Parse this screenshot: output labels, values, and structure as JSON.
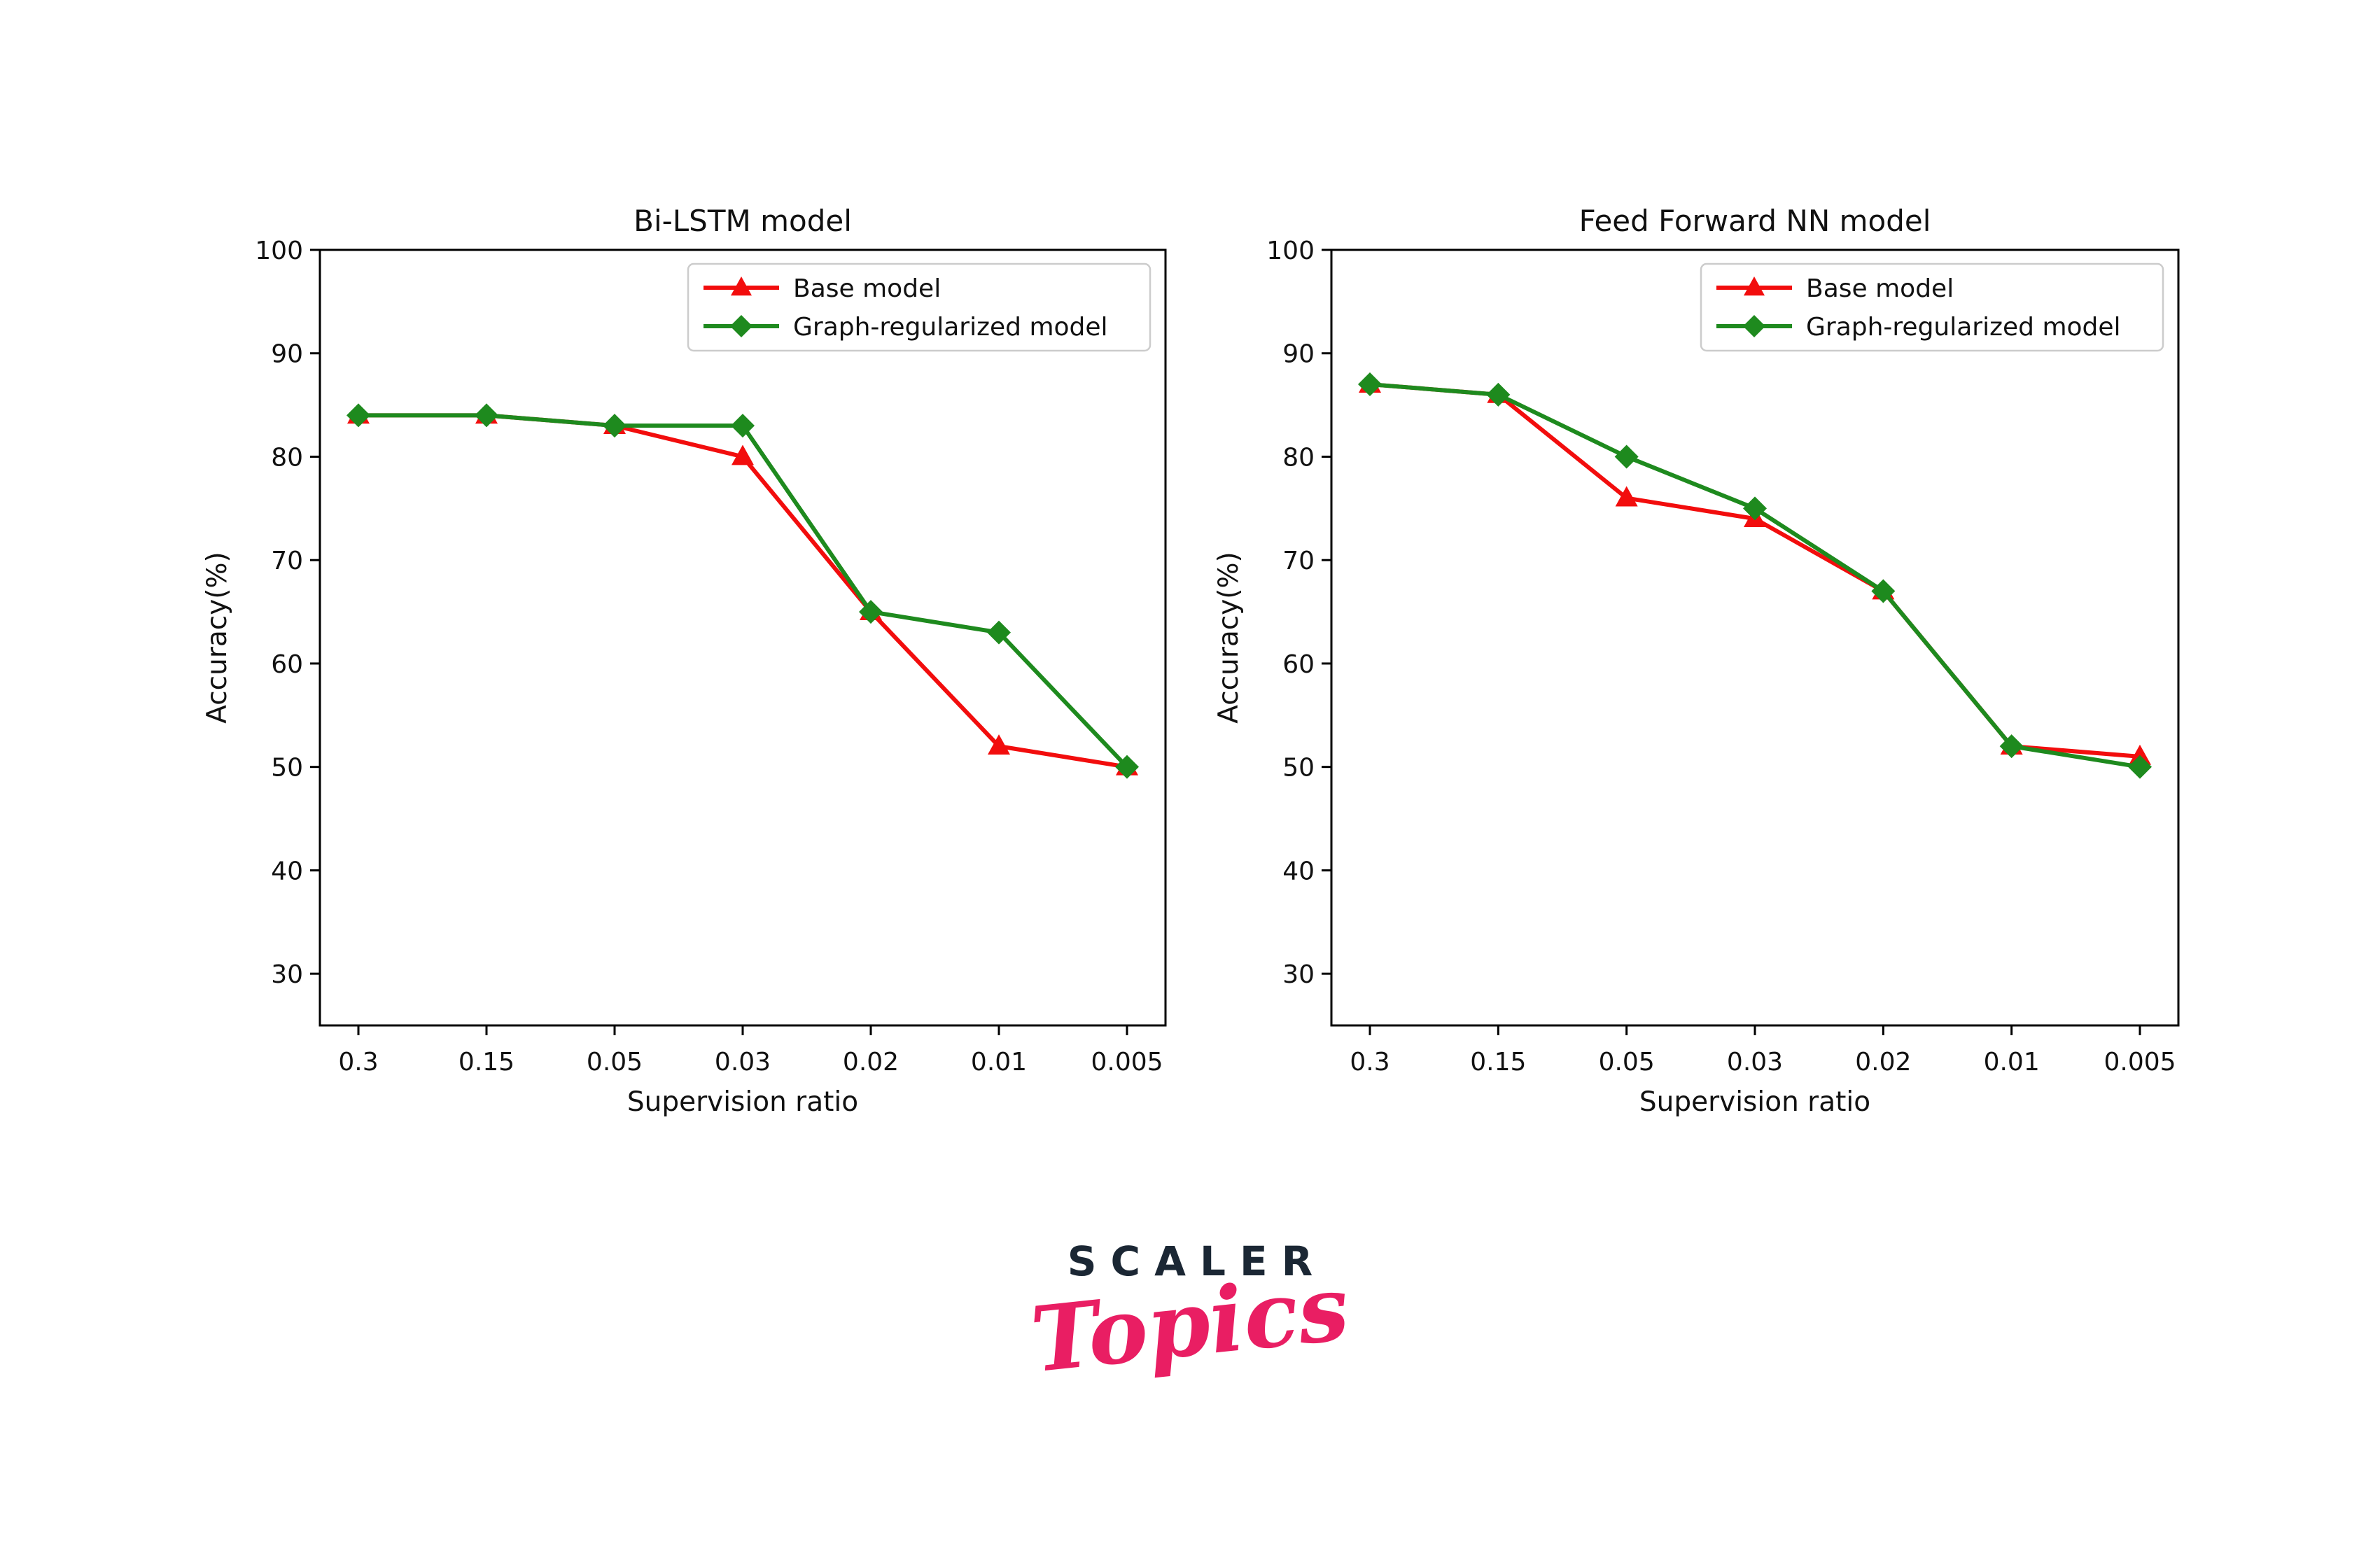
{
  "figure": {
    "background": "#ffffff",
    "text_color": "#111111",
    "axis_color": "#000000"
  },
  "logo": {
    "brand": "SCALER",
    "word": "Topics",
    "brand_color": "#1b2734",
    "word_color": "#e91e63"
  },
  "chart_data": [
    {
      "type": "line",
      "title": "Bi-LSTM model",
      "xlabel": "Supervision ratio",
      "ylabel": "Accuracy(%)",
      "categories": [
        "0.3",
        "0.15",
        "0.05",
        "0.03",
        "0.02",
        "0.01",
        "0.005"
      ],
      "yticks": [
        30,
        40,
        50,
        60,
        70,
        80,
        90,
        100
      ],
      "ylim": [
        25,
        100
      ],
      "grid": false,
      "legend_position": "upper right",
      "series": [
        {
          "name": "Base model",
          "marker": "triangle",
          "color": "#f20d0d",
          "values": [
            84,
            84,
            83,
            80,
            65,
            52,
            50
          ]
        },
        {
          "name": "Graph-regularized model",
          "marker": "diamond",
          "color": "#1e8a1e",
          "values": [
            84,
            84,
            83,
            83,
            65,
            63,
            50
          ]
        }
      ]
    },
    {
      "type": "line",
      "title": "Feed Forward NN model",
      "xlabel": "Supervision ratio",
      "ylabel": "Accuracy(%)",
      "categories": [
        "0.3",
        "0.15",
        "0.05",
        "0.03",
        "0.02",
        "0.01",
        "0.005"
      ],
      "yticks": [
        30,
        40,
        50,
        60,
        70,
        80,
        90,
        100
      ],
      "ylim": [
        25,
        100
      ],
      "grid": false,
      "legend_position": "upper right",
      "series": [
        {
          "name": "Base model",
          "marker": "triangle",
          "color": "#f20d0d",
          "values": [
            87,
            86,
            76,
            74,
            67,
            52,
            51
          ]
        },
        {
          "name": "Graph-regularized model",
          "marker": "diamond",
          "color": "#1e8a1e",
          "values": [
            87,
            86,
            80,
            75,
            67,
            52,
            50
          ]
        }
      ]
    }
  ]
}
